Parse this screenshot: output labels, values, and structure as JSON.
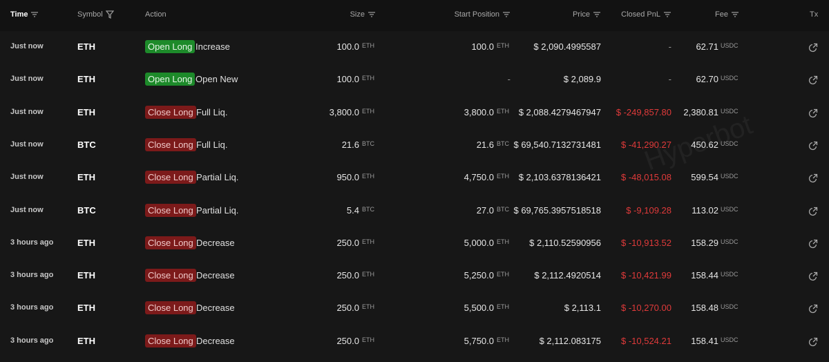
{
  "header": {
    "time": "Time",
    "symbol": "Symbol",
    "action": "Action",
    "size": "Size",
    "start_position": "Start Position",
    "price": "Price",
    "closed_pnl": "Closed PnL",
    "fee": "Fee",
    "tx": "Tx"
  },
  "watermark": "Hyperbot",
  "table": {
    "rows": [
      {
        "time": "Just now",
        "symbol": "ETH",
        "badge": "Open Long",
        "detail": "Increase",
        "size": "100.0",
        "size_unit": "ETH",
        "start": "100.0",
        "start_unit": "ETH",
        "price": "$ 2,090.4995587",
        "pnl": "-",
        "fee": "62.71",
        "fee_unit": "USDC"
      },
      {
        "time": "Just now",
        "symbol": "ETH",
        "badge": "Open Long",
        "detail": "Open New",
        "size": "100.0",
        "size_unit": "ETH",
        "start": "-",
        "price": "$ 2,089.9",
        "pnl": "-",
        "fee": "62.70",
        "fee_unit": "USDC"
      },
      {
        "time": "Just now",
        "symbol": "ETH",
        "badge": "Close Long",
        "detail": "Full Liq.",
        "size": "3,800.0",
        "size_unit": "ETH",
        "start": "3,800.0",
        "start_unit": "ETH",
        "price": "$ 2,088.4279467947",
        "pnl": "$ -249,857.80",
        "fee": "2,380.81",
        "fee_unit": "USDC"
      },
      {
        "time": "Just now",
        "symbol": "BTC",
        "badge": "Close Long",
        "detail": "Full Liq.",
        "size": "21.6",
        "size_unit": "BTC",
        "start": "21.6",
        "start_unit": "BTC",
        "price": "$ 69,540.7132731481",
        "pnl": "$ -41,290.27",
        "fee": "450.62",
        "fee_unit": "USDC"
      },
      {
        "time": "Just now",
        "symbol": "ETH",
        "badge": "Close Long",
        "detail": "Partial Liq.",
        "size": "950.0",
        "size_unit": "ETH",
        "start": "4,750.0",
        "start_unit": "ETH",
        "price": "$ 2,103.6378136421",
        "pnl": "$ -48,015.08",
        "fee": "599.54",
        "fee_unit": "USDC"
      },
      {
        "time": "Just now",
        "symbol": "BTC",
        "badge": "Close Long",
        "detail": "Partial Liq.",
        "size": "5.4",
        "size_unit": "BTC",
        "start": "27.0",
        "start_unit": "BTC",
        "price": "$ 69,765.3957518518",
        "pnl": "$ -9,109.28",
        "fee": "113.02",
        "fee_unit": "USDC"
      },
      {
        "time": "3 hours ago",
        "symbol": "ETH",
        "badge": "Close Long",
        "detail": "Decrease",
        "size": "250.0",
        "size_unit": "ETH",
        "start": "5,000.0",
        "start_unit": "ETH",
        "price": "$ 2,110.52590956",
        "pnl": "$ -10,913.52",
        "fee": "158.29",
        "fee_unit": "USDC"
      },
      {
        "time": "3 hours ago",
        "symbol": "ETH",
        "badge": "Close Long",
        "detail": "Decrease",
        "size": "250.0",
        "size_unit": "ETH",
        "start": "5,250.0",
        "start_unit": "ETH",
        "price": "$ 2,112.4920514",
        "pnl": "$ -10,421.99",
        "fee": "158.44",
        "fee_unit": "USDC"
      },
      {
        "time": "3 hours ago",
        "symbol": "ETH",
        "badge": "Close Long",
        "detail": "Decrease",
        "size": "250.0",
        "size_unit": "ETH",
        "start": "5,500.0",
        "start_unit": "ETH",
        "price": "$ 2,113.1",
        "pnl": "$ -10,270.00",
        "fee": "158.48",
        "fee_unit": "USDC"
      },
      {
        "time": "3 hours ago",
        "symbol": "ETH",
        "badge": "Close Long",
        "detail": "Decrease",
        "size": "250.0",
        "size_unit": "ETH",
        "start": "5,750.0",
        "start_unit": "ETH",
        "price": "$ 2,112.083175",
        "pnl": "$ -10,524.21",
        "fee": "158.41",
        "fee_unit": "USDC"
      }
    ]
  }
}
